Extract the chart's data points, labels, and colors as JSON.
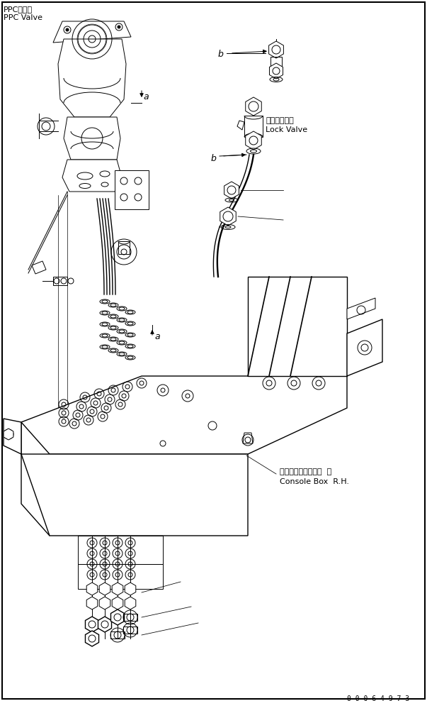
{
  "bg_color": "#ffffff",
  "line_color": "#000000",
  "label_ppc_jp": "PPCバルブ",
  "label_ppc_en": "PPC Valve",
  "label_lock_jp": "ロックバルブ",
  "label_lock_en": "Lock Valve",
  "label_console_jp": "コンソールボックス  右",
  "label_console_en": "Console Box  R.H.",
  "label_part_num": "0 0 0 6 4 9 7 3",
  "label_a1": "a",
  "label_a2": "a",
  "label_b1": "b",
  "label_b2": "b",
  "fig_w": 6.03,
  "fig_h": 9.88,
  "dpi": 100
}
